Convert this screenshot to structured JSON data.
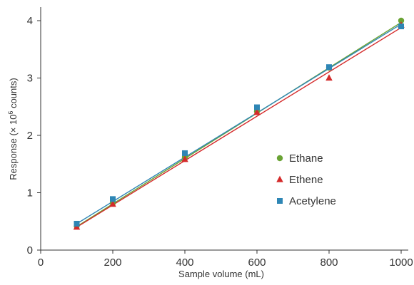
{
  "chart_data": {
    "type": "scatter",
    "xlabel": "Sample volume (mL)",
    "ylabel_parts": {
      "prefix": "Response (× 10",
      "superscript": "6",
      "suffix": " counts)"
    },
    "xlim": [
      0,
      1000
    ],
    "ylim": [
      0,
      4
    ],
    "xticks": [
      0,
      200,
      400,
      600,
      800,
      1000
    ],
    "yticks": [
      0,
      1,
      2,
      3,
      4
    ],
    "grid": false,
    "legend_position": "center-right",
    "series": [
      {
        "name": "Ethane",
        "marker": "circle",
        "color": "#6aa334",
        "x": [
          100,
          200,
          400,
          600,
          800,
          1000
        ],
        "y": [
          0.42,
          0.82,
          1.62,
          2.42,
          3.18,
          4.0
        ],
        "fit": {
          "x": [
            100,
            1000
          ],
          "y": [
            0.41,
            3.97
          ]
        }
      },
      {
        "name": "Ethene",
        "marker": "triangle",
        "color": "#d42a2a",
        "x": [
          100,
          200,
          400,
          600,
          800,
          1000
        ],
        "y": [
          0.4,
          0.8,
          1.58,
          2.4,
          3.0,
          3.92
        ],
        "fit": {
          "x": [
            100,
            1000
          ],
          "y": [
            0.4,
            3.88
          ]
        }
      },
      {
        "name": "Acetylene",
        "marker": "square",
        "color": "#2e86b5",
        "x": [
          100,
          200,
          400,
          600,
          800,
          1000
        ],
        "y": [
          0.46,
          0.89,
          1.69,
          2.49,
          3.19,
          3.9
        ],
        "fit": {
          "x": [
            100,
            1000
          ],
          "y": [
            0.46,
            3.94
          ]
        }
      }
    ]
  }
}
